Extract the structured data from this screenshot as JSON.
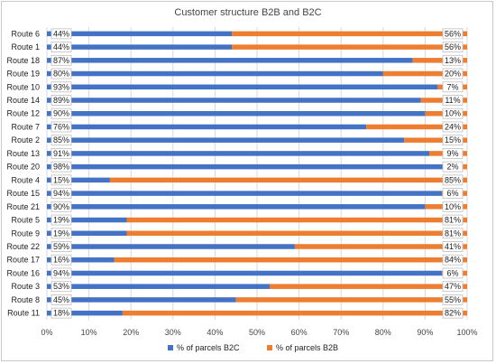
{
  "chart_data": {
    "type": "bar",
    "orientation": "horizontal",
    "stacked": "percent",
    "title": "Customer structure B2B and B2C",
    "categories": [
      "Route 6",
      "Route 1",
      "Route 18",
      "Route 19",
      "Route 10",
      "Route 14",
      "Route 12",
      "Route 7",
      "Route 2",
      "Route 13",
      "Route 20",
      "Route 4",
      "Route 15",
      "Route 21",
      "Route 5",
      "Route 9",
      "Route 22",
      "Route 17",
      "Route 16",
      "Route 3",
      "Route 8",
      "Route 11"
    ],
    "series": [
      {
        "name": "% of parcels B2C",
        "color": "#4472C4",
        "values": [
          44,
          44,
          87,
          80,
          93,
          89,
          90,
          76,
          85,
          91,
          98,
          15,
          94,
          90,
          19,
          19,
          59,
          16,
          94,
          53,
          45,
          18
        ]
      },
      {
        "name": "% of parcels B2B",
        "color": "#ED7D31",
        "values": [
          56,
          56,
          13,
          20,
          7,
          11,
          10,
          24,
          15,
          9,
          2,
          85,
          6,
          10,
          81,
          81,
          41,
          84,
          6,
          47,
          55,
          82
        ]
      }
    ],
    "data_labels": {
      "b2c": [
        "44%",
        "44%",
        "87%",
        "80%",
        "93%",
        "89%",
        "90%",
        "76%",
        "85%",
        "91%",
        "98%",
        "15%",
        "94%",
        "90%",
        "19%",
        "19%",
        "59%",
        "16%",
        "94%",
        "53%",
        "45%",
        "18%"
      ],
      "b2b": [
        "56%",
        "56%",
        "13%",
        "20%",
        "7%",
        "11%",
        "10%",
        "24%",
        "15%",
        "9%",
        "2%",
        "85%",
        "6%",
        "10%",
        "81%",
        "81%",
        "41%",
        "84%",
        "6%",
        "47%",
        "55%",
        "82%"
      ]
    },
    "xticks": [
      "0%",
      "10%",
      "20%",
      "30%",
      "40%",
      "50%",
      "60%",
      "70%",
      "80%",
      "90%",
      "100%"
    ],
    "xlim": [
      0,
      100
    ],
    "legend_position": "bottom",
    "grid": "vertical"
  }
}
